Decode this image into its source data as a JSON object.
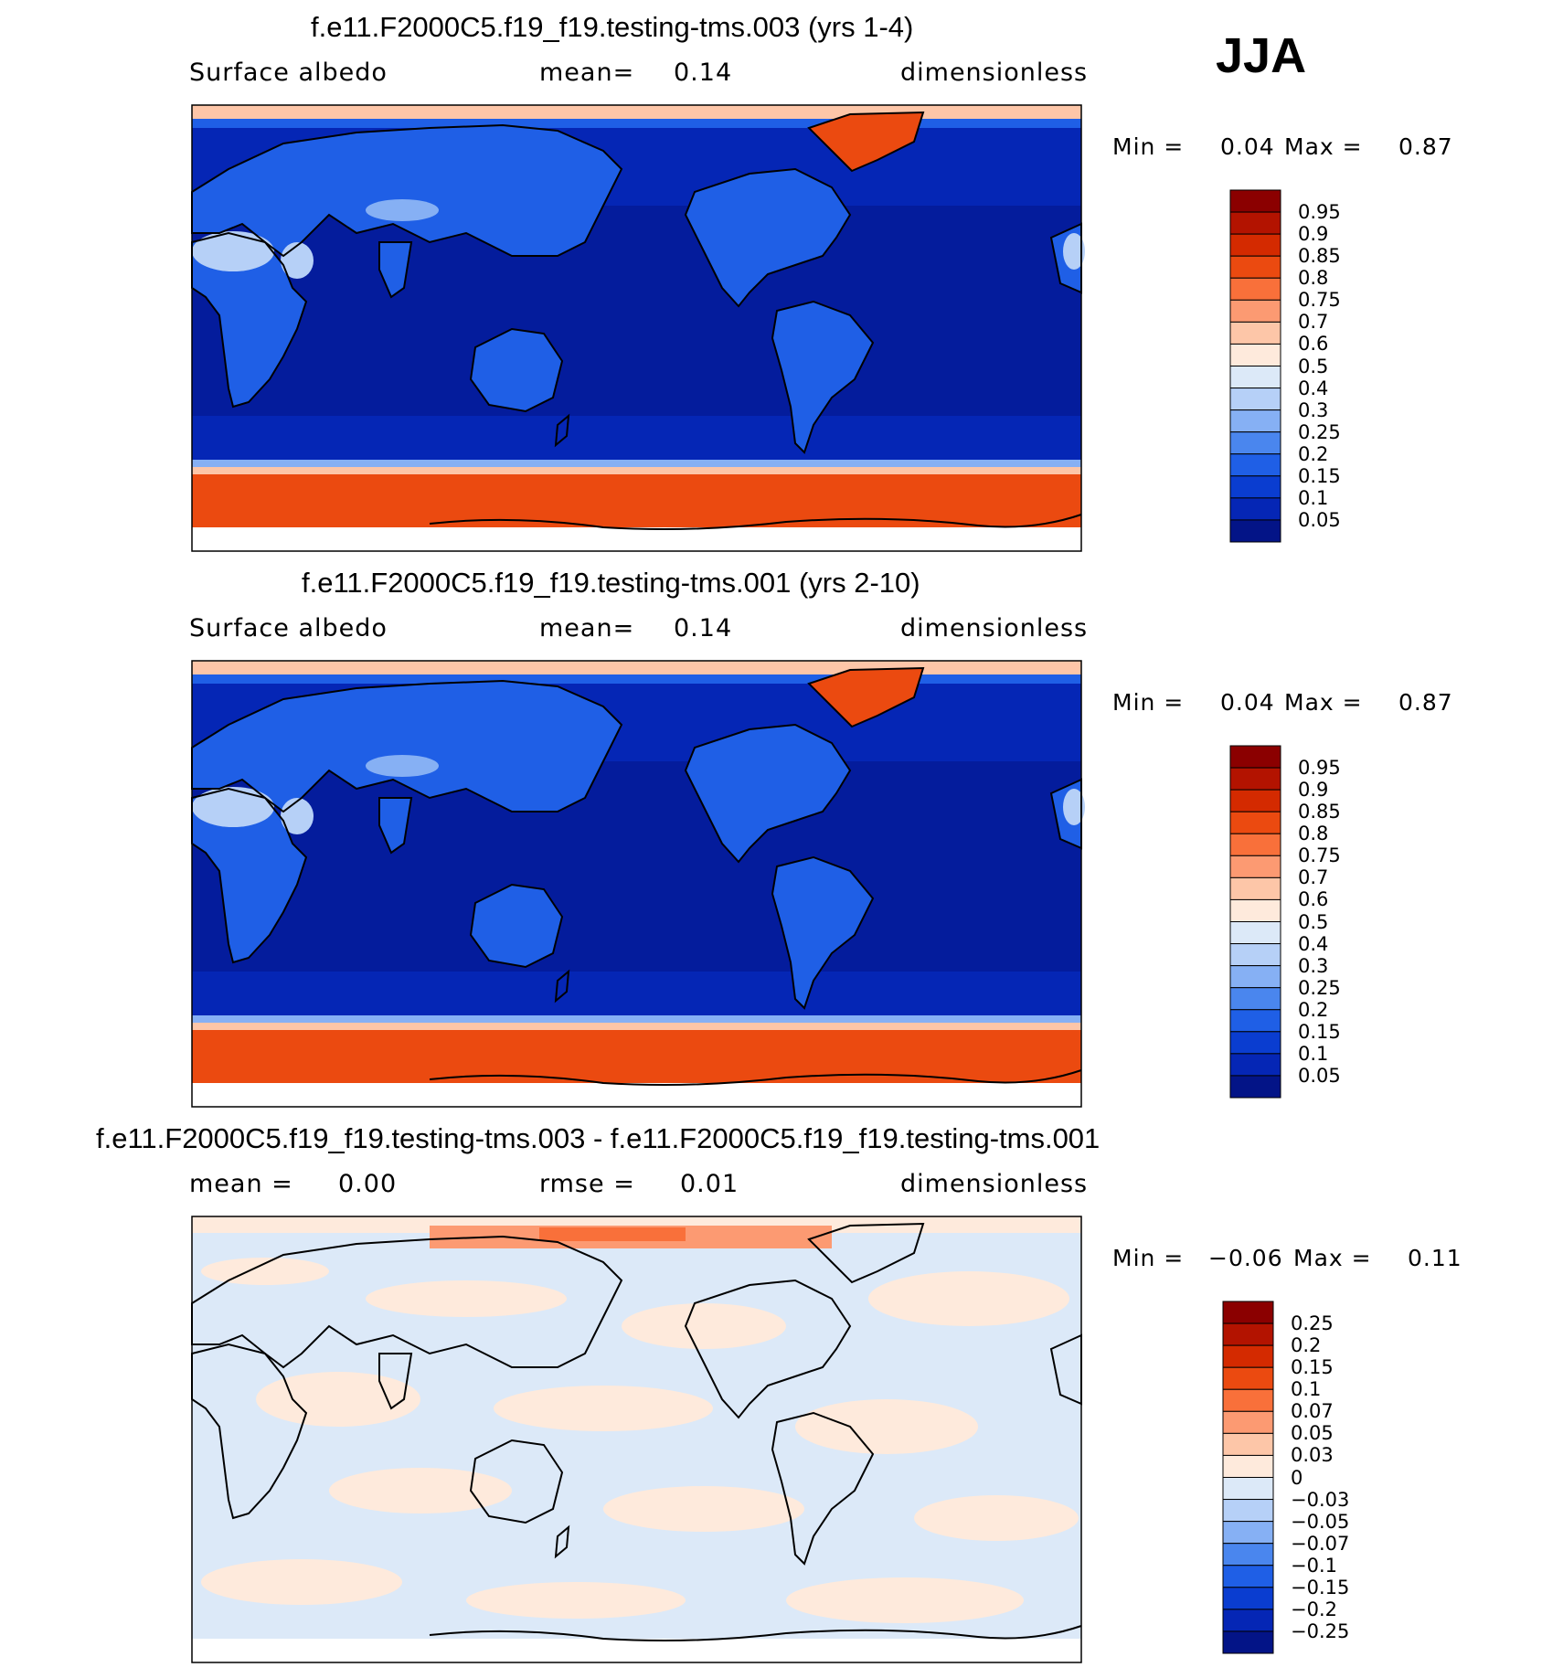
{
  "season": "JJA",
  "panels": [
    {
      "title": "f.e11.F2000C5.f19_f19.testing-tms.003 (yrs 1-4)",
      "subtitle_left": "Surface albedo",
      "subtitle_mid_label": "mean=",
      "subtitle_mid_value": "0.14",
      "subtitle_right": "dimensionless",
      "min_label": "Min =",
      "min_value": "0.04",
      "max_label": "Max =",
      "max_value": "0.87",
      "colorbar": {
        "levels": [
          "0.95",
          "0.9",
          "0.85",
          "0.8",
          "0.75",
          "0.7",
          "0.6",
          "0.5",
          "0.4",
          "0.3",
          "0.25",
          "0.2",
          "0.15",
          "0.1",
          "0.05"
        ],
        "colors": [
          "#8b0000",
          "#b31300",
          "#d42a00",
          "#eb4a10",
          "#f9703a",
          "#fc9a72",
          "#fdc6a8",
          "#feeadc",
          "#dce9f8",
          "#b6d0f7",
          "#86b0f4",
          "#4a86ee",
          "#1f5fe6",
          "#0a3dd0",
          "#0526b5",
          "#031487"
        ]
      }
    },
    {
      "title": "f.e11.F2000C5.f19_f19.testing-tms.001 (yrs 2-10)",
      "subtitle_left": "Surface albedo",
      "subtitle_mid_label": "mean=",
      "subtitle_mid_value": "0.14",
      "subtitle_right": "dimensionless",
      "min_label": "Min =",
      "min_value": "0.04",
      "max_label": "Max =",
      "max_value": "0.87",
      "colorbar": {
        "levels": [
          "0.95",
          "0.9",
          "0.85",
          "0.8",
          "0.75",
          "0.7",
          "0.6",
          "0.5",
          "0.4",
          "0.3",
          "0.25",
          "0.2",
          "0.15",
          "0.1",
          "0.05"
        ],
        "colors": [
          "#8b0000",
          "#b31300",
          "#d42a00",
          "#eb4a10",
          "#f9703a",
          "#fc9a72",
          "#fdc6a8",
          "#feeadc",
          "#dce9f8",
          "#b6d0f7",
          "#86b0f4",
          "#4a86ee",
          "#1f5fe6",
          "#0a3dd0",
          "#0526b5",
          "#031487"
        ]
      }
    },
    {
      "title": "f.e11.F2000C5.f19_f19.testing-tms.003 - f.e11.F2000C5.f19_f19.testing-tms.001",
      "subtitle_left_label": "mean =",
      "subtitle_left_value": "0.00",
      "subtitle_mid_label": "rmse =",
      "subtitle_mid_value": "0.01",
      "subtitle_right": "dimensionless",
      "min_label": "Min =",
      "min_value": "−0.06",
      "max_label": "Max =",
      "max_value": "0.11",
      "colorbar": {
        "levels": [
          "0.25",
          "0.2",
          "0.15",
          "0.1",
          "0.07",
          "0.05",
          "0.03",
          "0",
          "−0.03",
          "−0.05",
          "−0.07",
          "−0.1",
          "−0.15",
          "−0.2",
          "−0.25"
        ],
        "colors": [
          "#8b0000",
          "#b31300",
          "#d42a00",
          "#eb4a10",
          "#f9703a",
          "#fc9a72",
          "#fdc6a8",
          "#feeadc",
          "#dce9f8",
          "#b6d0f7",
          "#86b0f4",
          "#4a86ee",
          "#1f5fe6",
          "#0a3dd0",
          "#0526b5",
          "#031487"
        ]
      }
    }
  ],
  "colors": {
    "ocean_dark": "#0526b5",
    "ocean_deep": "#031487",
    "land_blue": "#1f5fe6",
    "desert": "#b6d0f7",
    "ice_red": "#eb4a10",
    "diff_neg": "#dce9f8",
    "diff_pos": "#feeadc",
    "diff_arctic": "#f9703a"
  }
}
